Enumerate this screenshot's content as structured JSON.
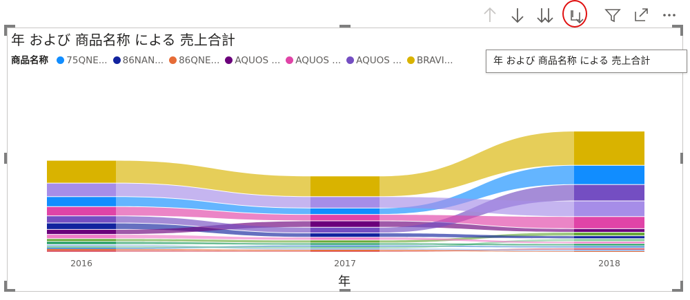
{
  "toolbar": {
    "icons": [
      "drill-up-icon",
      "drill-down-icon",
      "expand-all-down-icon",
      "drill-down-hierarchy-icon",
      "filter-icon",
      "focus-mode-icon",
      "more-options-icon"
    ],
    "highlight_color": "#e01010"
  },
  "tooltip": {
    "text": "年 および 商品名称 による 売上合計"
  },
  "chart_data": {
    "type": "ribbon",
    "title": "年 および 商品名称 による 売上合計",
    "xlabel": "年",
    "ylabel": "",
    "legend_title": "商品名称",
    "legend_placement": "top-left",
    "grid": false,
    "categories": [
      "2016",
      "2017",
      "2018"
    ],
    "legend_entries": [
      {
        "label": "75QNE...",
        "color": "#118dff"
      },
      {
        "label": "86NAN...",
        "color": "#12239e"
      },
      {
        "label": "86QNE...",
        "color": "#e66c37"
      },
      {
        "label": "AQUOS ...",
        "color": "#6b007b"
      },
      {
        "label": "AQUOS ...",
        "color": "#e044a7"
      },
      {
        "label": "AQUOS ...",
        "color": "#744ec2"
      },
      {
        "label": "BRAVI...",
        "color": "#d9b300"
      }
    ],
    "series": [
      {
        "color": "#d95a6e",
        "values": [
          2,
          1,
          3
        ]
      },
      {
        "color": "#e66c37",
        "values": [
          2,
          2,
          1
        ]
      },
      {
        "color": "#a7c3f0",
        "values": [
          3,
          2,
          2
        ]
      },
      {
        "color": "#4c8fd4",
        "values": [
          2,
          3,
          3
        ]
      },
      {
        "color": "#8ad0a0",
        "values": [
          2,
          2,
          4
        ]
      },
      {
        "color": "#1b9a5c",
        "values": [
          4,
          3,
          3
        ]
      },
      {
        "color": "#6aaa3a",
        "values": [
          4,
          4,
          5
        ]
      },
      {
        "color": "#f07cc8",
        "values": [
          6,
          4,
          3
        ]
      },
      {
        "color": "#12239e",
        "values": [
          9,
          6,
          4
        ]
      },
      {
        "color": "#6b007b",
        "values": [
          7,
          9,
          5
        ]
      },
      {
        "color": "#744ec2",
        "values": [
          10,
          8,
          23
        ]
      },
      {
        "color": "#e044a7",
        "values": [
          13,
          9,
          17
        ]
      },
      {
        "color": "#118dff",
        "values": [
          14,
          9,
          27
        ]
      },
      {
        "color": "#a68de8",
        "values": [
          19,
          16,
          22
        ]
      },
      {
        "color": "#d9b300",
        "values": [
          32,
          29,
          48
        ]
      }
    ],
    "ylim": [
      0,
      230
    ]
  }
}
